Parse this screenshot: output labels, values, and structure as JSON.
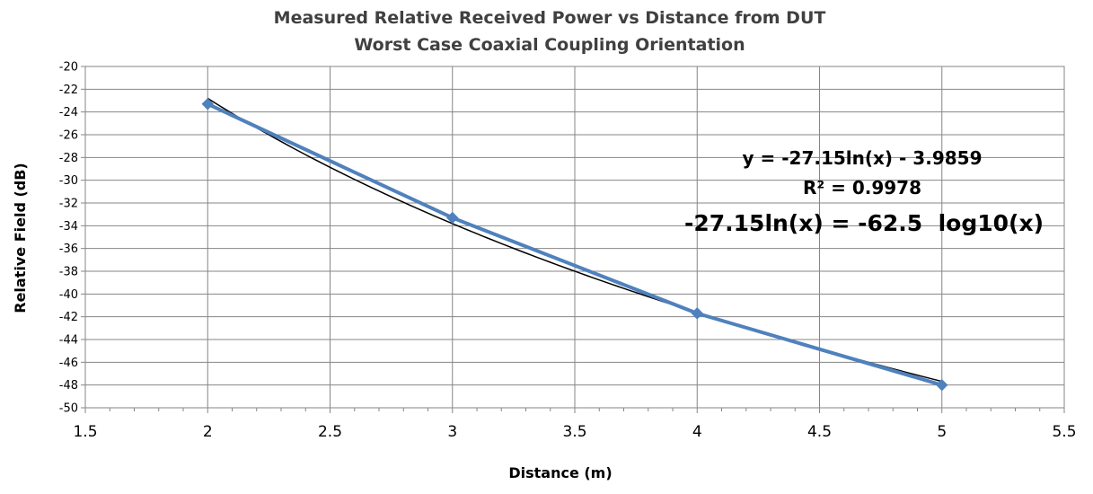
{
  "chart_data": {
    "type": "scatter",
    "title": "Measured Relative Received Power vs Distance from DUT",
    "subtitle": "Worst Case Coaxial Coupling Orientation",
    "xlabel": "Distance (m)",
    "ylabel": "Relative Field (dB)",
    "xlim": [
      1.5,
      5.5
    ],
    "ylim": [
      -50,
      -20
    ],
    "x_ticks": [
      1.5,
      2,
      2.5,
      3,
      3.5,
      4,
      4.5,
      5,
      5.5
    ],
    "x_tick_labels": [
      "1.5",
      "2",
      "2.5",
      "3",
      "3.5",
      "4",
      "4.5",
      "5",
      "5.5"
    ],
    "y_ticks": [
      -20,
      -22,
      -24,
      -26,
      -28,
      -30,
      -32,
      -34,
      -36,
      -38,
      -40,
      -42,
      -44,
      -46,
      -48,
      -50
    ],
    "y_tick_labels": [
      "-20",
      "-22",
      "-24",
      "-26",
      "-28",
      "-30",
      "-32",
      "-34",
      "-36",
      "-38",
      "-40",
      "-42",
      "-44",
      "-46",
      "-48",
      "-50"
    ],
    "grid": true,
    "series": [
      {
        "type": "line-markers",
        "color": "#4f81bd",
        "x": [
          2,
          3,
          4,
          5
        ],
        "y": [
          -23.3,
          -33.3,
          -41.7,
          -48.0
        ]
      }
    ],
    "trendline": {
      "type": "logarithmic",
      "color": "#000000",
      "coefficient": -27.15,
      "intercept": -3.9859,
      "x_range": [
        2,
        5
      ]
    },
    "annotations": [
      "y = -27.15ln(x) - 3.9859",
      "R² = 0.9978",
      "-27.15ln(x) = -62.5  log10(x)"
    ]
  }
}
